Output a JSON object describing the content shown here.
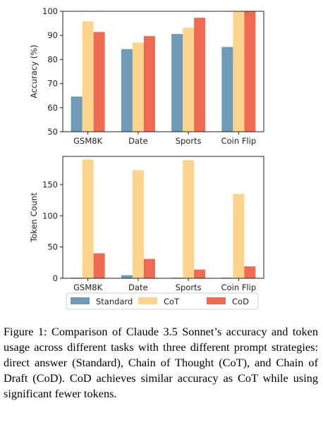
{
  "colors": {
    "Standard": "#6f9ab8",
    "CoT": "#fcd48b",
    "CoD": "#ee6a50"
  },
  "chart_data": [
    {
      "type": "bar",
      "categories": [
        "GSM8K",
        "Date",
        "Sports",
        "Coin Flip"
      ],
      "ylabel": "Accuracy (%)",
      "ylim": [
        50,
        100
      ],
      "yticks": [
        50,
        60,
        70,
        80,
        90,
        100
      ],
      "series": [
        {
          "name": "Standard",
          "values": [
            64.6,
            84.3,
            90.6,
            85.2
          ]
        },
        {
          "name": "CoT",
          "values": [
            95.8,
            87.0,
            93.2,
            100.0
          ]
        },
        {
          "name": "CoD",
          "values": [
            91.4,
            89.7,
            97.3,
            100.0
          ]
        }
      ]
    },
    {
      "type": "bar",
      "categories": [
        "GSM8K",
        "Date",
        "Sports",
        "Coin Flip"
      ],
      "ylabel": "Token Count",
      "ylim": [
        0,
        195
      ],
      "yticks": [
        0,
        50,
        100,
        150
      ],
      "series": [
        {
          "name": "Standard",
          "values": [
            1,
            5,
            1,
            1
          ]
        },
        {
          "name": "CoT",
          "values": [
            190,
            173,
            189,
            135
          ]
        },
        {
          "name": "CoD",
          "values": [
            40,
            31,
            14,
            19
          ]
        }
      ]
    }
  ],
  "caption": "Figure 1: Comparison of Claude 3.5 Sonnet’s accuracy and token usage across different tasks with three different prompt strategies: direct answer (Standard), Chain of Thought (CoT), and Chain of Draft (CoD). CoD achieves similar accuracy as CoT while using significant fewer tokens."
}
